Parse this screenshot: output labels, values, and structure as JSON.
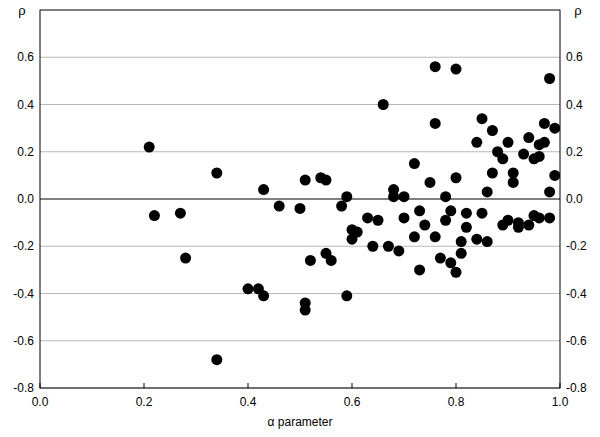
{
  "chart_data": {
    "type": "scatter",
    "x_label": "α parameter",
    "y_label": "ρ",
    "x": [
      0.21,
      0.22,
      0.27,
      0.28,
      0.34,
      0.34,
      0.4,
      0.42,
      0.43,
      0.43,
      0.46,
      0.5,
      0.51,
      0.51,
      0.51,
      0.52,
      0.54,
      0.55,
      0.55,
      0.56,
      0.58,
      0.59,
      0.59,
      0.6,
      0.6,
      0.61,
      0.63,
      0.64,
      0.65,
      0.66,
      0.67,
      0.68,
      0.68,
      0.69,
      0.7,
      0.7,
      0.72,
      0.72,
      0.73,
      0.73,
      0.74,
      0.75,
      0.76,
      0.76,
      0.76,
      0.77,
      0.78,
      0.78,
      0.79,
      0.79,
      0.8,
      0.8,
      0.8,
      0.81,
      0.81,
      0.82,
      0.82,
      0.84,
      0.84,
      0.85,
      0.85,
      0.86,
      0.86,
      0.87,
      0.87,
      0.88,
      0.89,
      0.89,
      0.9,
      0.9,
      0.91,
      0.91,
      0.92,
      0.92,
      0.93,
      0.94,
      0.94,
      0.95,
      0.95,
      0.96,
      0.96,
      0.96,
      0.97,
      0.97,
      0.98,
      0.98,
      0.98,
      0.99,
      0.99
    ],
    "values": [
      0.22,
      -0.07,
      -0.06,
      -0.25,
      0.11,
      -0.68,
      -0.38,
      -0.38,
      -0.41,
      0.04,
      -0.03,
      -0.04,
      -0.44,
      -0.47,
      0.08,
      -0.26,
      0.09,
      -0.23,
      0.08,
      -0.26,
      -0.03,
      0.01,
      -0.41,
      -0.13,
      -0.17,
      -0.14,
      -0.08,
      -0.2,
      -0.09,
      0.4,
      -0.2,
      0.01,
      0.04,
      -0.22,
      -0.08,
      0.01,
      -0.16,
      0.15,
      -0.3,
      -0.05,
      -0.11,
      0.07,
      0.32,
      0.56,
      -0.16,
      -0.25,
      -0.09,
      0.01,
      -0.05,
      -0.27,
      -0.31,
      0.09,
      0.55,
      -0.23,
      -0.18,
      -0.12,
      -0.06,
      -0.17,
      0.24,
      -0.06,
      0.34,
      0.03,
      -0.18,
      0.11,
      0.29,
      0.2,
      -0.11,
      0.17,
      -0.09,
      0.24,
      0.07,
      0.11,
      -0.12,
      -0.1,
      0.19,
      -0.11,
      0.26,
      0.17,
      -0.07,
      0.18,
      0.23,
      -0.08,
      0.24,
      0.32,
      0.51,
      -0.08,
      0.03,
      0.3,
      0.1
    ],
    "xlim": [
      0,
      1
    ],
    "ylim": [
      -0.8,
      0.8
    ],
    "xticks": [
      {
        "value": 0,
        "label": "0.0"
      },
      0.2,
      0.4,
      0.6,
      0.8,
      {
        "value": 1,
        "label": "1.0"
      }
    ],
    "yticks": [
      -0.8,
      -0.6,
      -0.4,
      -0.2,
      {
        "value": 0,
        "label": "0.0"
      },
      0.2,
      0.4,
      0.6
    ],
    "grid": true,
    "color": "#000000",
    "marker": "circle"
  }
}
